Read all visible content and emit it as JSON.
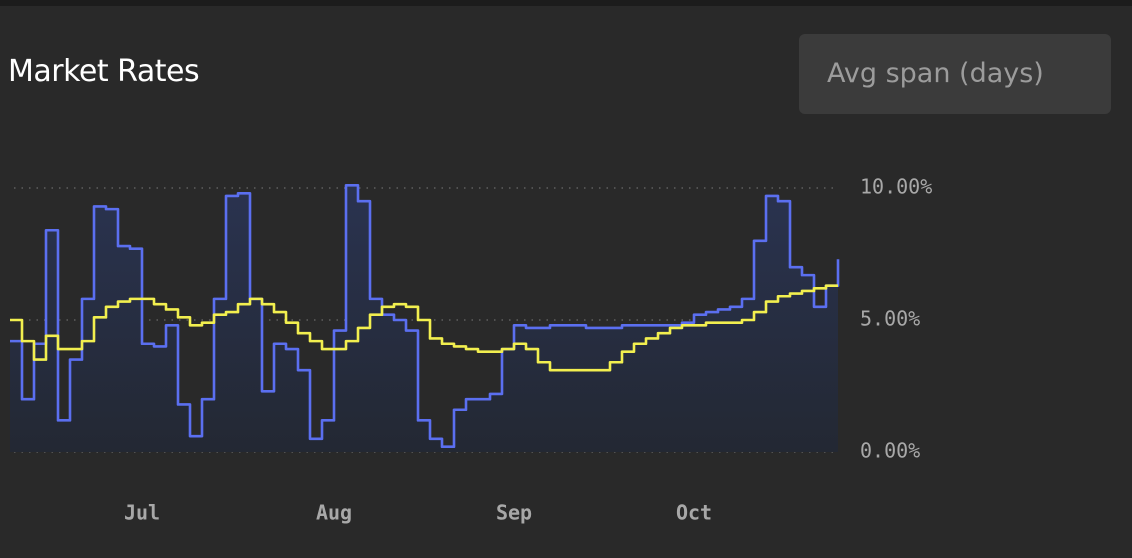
{
  "header": {
    "title": "Market Rates",
    "input_placeholder": "Avg span (days)"
  },
  "chart_data": {
    "type": "line",
    "step": true,
    "categories": [
      null,
      null,
      null,
      null,
      null,
      null,
      null,
      null,
      null,
      null,
      null,
      "Jul",
      null,
      null,
      null,
      null,
      null,
      null,
      null,
      null,
      null,
      null,
      null,
      null,
      null,
      null,
      null,
      "Aug",
      null,
      null,
      null,
      null,
      null,
      null,
      null,
      null,
      null,
      null,
      null,
      null,
      null,
      null,
      "Sep",
      null,
      null,
      null,
      null,
      null,
      null,
      null,
      null,
      null,
      null,
      null,
      null,
      null,
      null,
      "Oct",
      null,
      null,
      null,
      null,
      null,
      null,
      null,
      null,
      null,
      null,
      null,
      null
    ],
    "series": [
      {
        "color": "#5b6ff0",
        "fill": true,
        "values": [
          4.2,
          2.0,
          4.1,
          8.4,
          1.2,
          3.5,
          5.8,
          9.3,
          9.2,
          7.8,
          7.7,
          4.1,
          4.0,
          4.8,
          1.8,
          0.6,
          2.0,
          5.8,
          9.7,
          9.8,
          5.8,
          2.3,
          4.1,
          3.9,
          3.1,
          0.5,
          1.2,
          4.6,
          10.1,
          9.5,
          5.8,
          5.2,
          5.0,
          4.6,
          1.2,
          0.5,
          0.2,
          1.6,
          2.0,
          2.0,
          2.2,
          3.9,
          4.8,
          4.7,
          4.7,
          4.8,
          4.8,
          4.8,
          4.7,
          4.7,
          4.7,
          4.8,
          4.8,
          4.8,
          4.8,
          4.8,
          4.9,
          5.2,
          5.3,
          5.4,
          5.5,
          5.8,
          8.0,
          9.7,
          9.5,
          7.0,
          6.7,
          5.5,
          6.3,
          7.3
        ]
      },
      {
        "color": "#f2ef4f",
        "fill": false,
        "values": [
          5.0,
          4.2,
          3.5,
          4.4,
          3.9,
          3.9,
          4.2,
          5.1,
          5.5,
          5.7,
          5.8,
          5.8,
          5.6,
          5.4,
          5.1,
          4.8,
          4.9,
          5.2,
          5.3,
          5.6,
          5.8,
          5.6,
          5.3,
          4.9,
          4.5,
          4.2,
          3.9,
          3.9,
          4.2,
          4.7,
          5.2,
          5.5,
          5.6,
          5.5,
          5.0,
          4.3,
          4.1,
          4.0,
          3.9,
          3.8,
          3.8,
          3.9,
          4.1,
          3.9,
          3.4,
          3.1,
          3.1,
          3.1,
          3.1,
          3.1,
          3.4,
          3.8,
          4.1,
          4.3,
          4.5,
          4.7,
          4.8,
          4.8,
          4.9,
          4.9,
          4.9,
          5.0,
          5.3,
          5.7,
          5.9,
          6.0,
          6.1,
          6.2,
          6.3,
          6.3
        ]
      }
    ],
    "ylim": [
      0,
      10.5
    ],
    "yticks": [
      {
        "value": 0,
        "label": "0.00%"
      },
      {
        "value": 5,
        "label": "5.00%"
      },
      {
        "value": 10,
        "label": "10.00%"
      }
    ],
    "grid": true
  }
}
